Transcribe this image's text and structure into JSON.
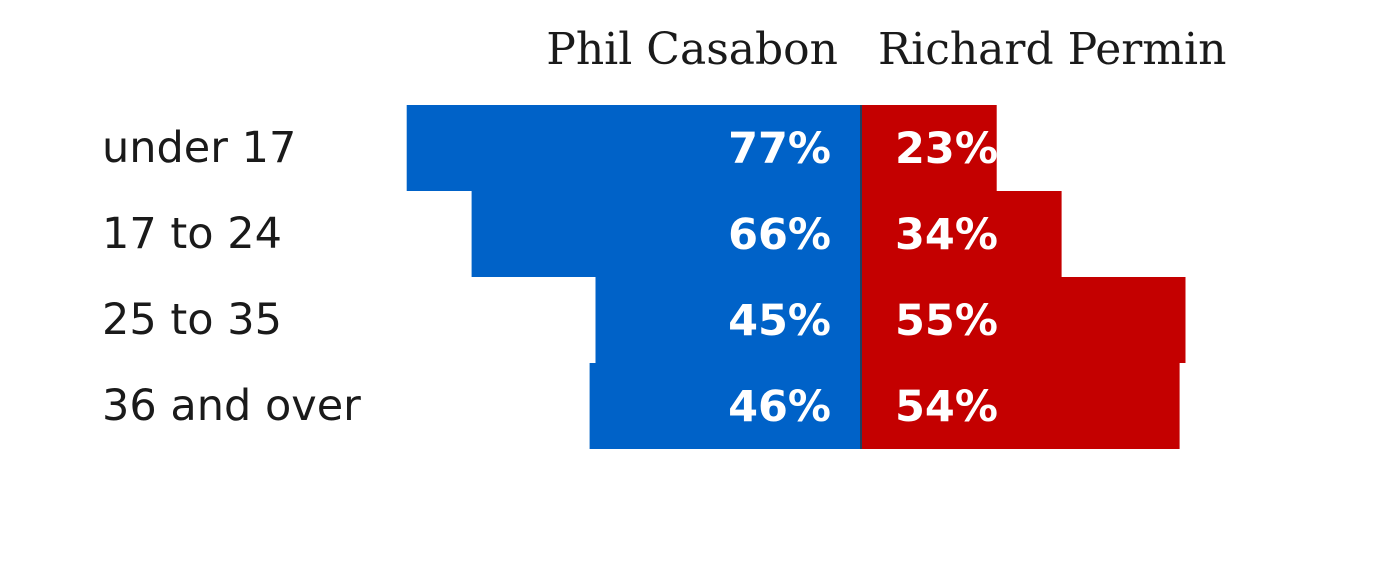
{
  "chart_data": {
    "type": "bar",
    "subtype": "diverging-stacked-horizontal",
    "categories": [
      "under 17",
      "17 to 24",
      "25 to 35",
      "36 and over"
    ],
    "series": [
      {
        "name": "Phil Casabon",
        "values": [
          77,
          66,
          45,
          46
        ],
        "color": "#0062c8",
        "labels": [
          "77%",
          "66%",
          "45%",
          "46%"
        ]
      },
      {
        "name": "Richard Permin",
        "values": [
          23,
          34,
          55,
          54
        ],
        "color": "#c40000",
        "labels": [
          "23%",
          "34%",
          "55%",
          "54%"
        ]
      }
    ],
    "unit": "%",
    "legend": "top"
  }
}
